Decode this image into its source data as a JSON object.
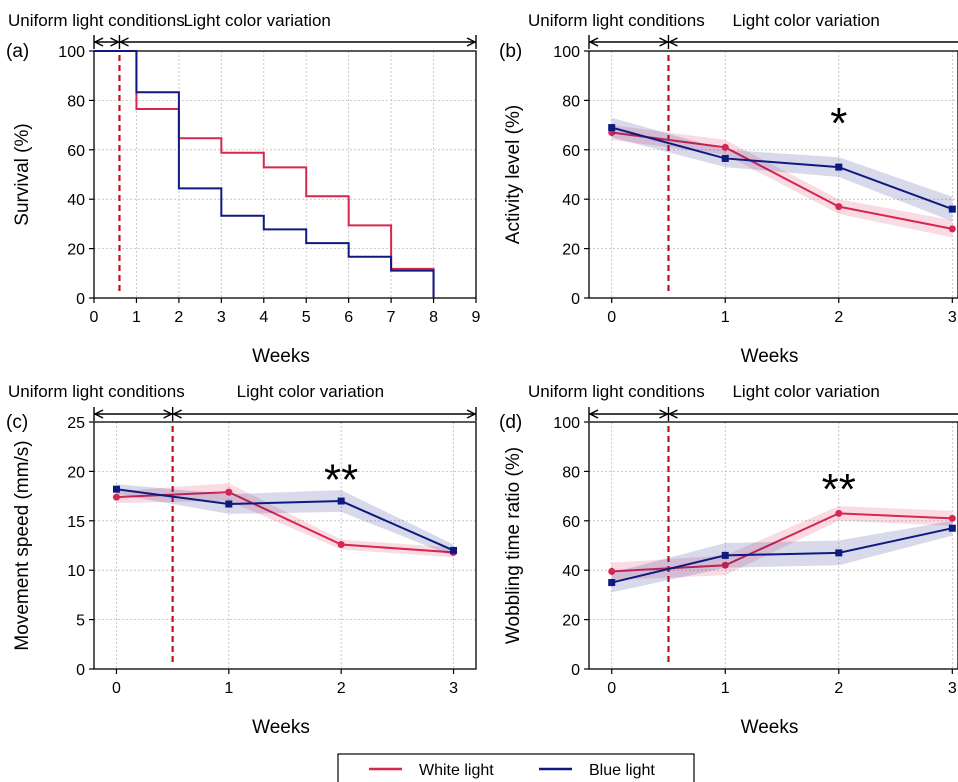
{
  "colors": {
    "white_light": "#d7264f",
    "blue_light": "#0d1a80",
    "phase_line": "#c0121e"
  },
  "legend": {
    "items": [
      "White light",
      "Blue light"
    ]
  },
  "chart_data": [
    {
      "panel": "(a)",
      "type": "line",
      "step": true,
      "xlabel": "Weeks",
      "ylabel": "Survival (%)",
      "xlim": [
        0,
        9
      ],
      "ylim": [
        0,
        100
      ],
      "xticks": [
        "0",
        "1",
        "2",
        "3",
        "4",
        "5",
        "6",
        "7",
        "8",
        "9"
      ],
      "yticks": [
        "0",
        "20",
        "40",
        "60",
        "80",
        "100"
      ],
      "phases": [
        "Uniform light conditions",
        "Light color variation"
      ],
      "phase_boundary": 0.6,
      "significance": "",
      "series": [
        {
          "name": "White light",
          "x": [
            0,
            1,
            2,
            3,
            4,
            5,
            6,
            7,
            8
          ],
          "y": [
            100,
            76.5,
            64.7,
            58.8,
            52.9,
            41.2,
            29.4,
            11.8,
            0
          ]
        },
        {
          "name": "Blue light",
          "x": [
            0,
            1,
            2,
            3,
            4,
            5,
            6,
            7,
            8
          ],
          "y": [
            100,
            83.3,
            44.4,
            33.3,
            27.8,
            22.2,
            16.7,
            11.1,
            0
          ]
        }
      ]
    },
    {
      "panel": "(b)",
      "type": "line",
      "xlabel": "Weeks",
      "ylabel": "Activity level (%)",
      "xlim": [
        -0.2,
        3.05
      ],
      "ylim": [
        0,
        100
      ],
      "xticks": [
        "0",
        "1",
        "2",
        "3"
      ],
      "yticks": [
        "0",
        "20",
        "40",
        "60",
        "80",
        "100"
      ],
      "phases": [
        "Uniform light conditions",
        "Light color variation"
      ],
      "phase_boundary": 0.5,
      "significance": "*",
      "significance_at": [
        2,
        72
      ],
      "series": [
        {
          "name": "White light",
          "x": [
            0,
            1,
            2,
            3
          ],
          "y": [
            67,
            61,
            37,
            28
          ],
          "band": [
            3,
            3,
            3,
            3.5
          ]
        },
        {
          "name": "Blue light",
          "x": [
            0,
            1,
            2,
            3
          ],
          "y": [
            69,
            56.5,
            53,
            36
          ],
          "band": [
            4,
            3.5,
            4,
            5
          ]
        }
      ]
    },
    {
      "panel": "(c)",
      "type": "line",
      "xlabel": "Weeks",
      "ylabel": "Movement speed (mm/s)",
      "xlim": [
        -0.2,
        3.2
      ],
      "ylim": [
        0,
        25
      ],
      "xticks": [
        "0",
        "1",
        "2",
        "3"
      ],
      "yticks": [
        "0",
        "5",
        "10",
        "15",
        "20",
        "25"
      ],
      "phases": [
        "Uniform light conditions",
        "Light color variation"
      ],
      "phase_boundary": 0.5,
      "significance": "**",
      "significance_at": [
        2,
        19.5
      ],
      "series": [
        {
          "name": "White light",
          "x": [
            0,
            1,
            2,
            3
          ],
          "y": [
            17.4,
            17.9,
            12.6,
            11.8
          ],
          "band": [
            0.6,
            0.9,
            0.5,
            0.5
          ]
        },
        {
          "name": "Blue light",
          "x": [
            0,
            1,
            2,
            3
          ],
          "y": [
            18.2,
            16.7,
            17.0,
            12.0
          ],
          "band": [
            0.5,
            1.0,
            1.1,
            0.6
          ]
        }
      ]
    },
    {
      "panel": "(d)",
      "type": "line",
      "xlabel": "Weeks",
      "ylabel": "Wobbling time ratio (%)",
      "xlim": [
        -0.2,
        3.05
      ],
      "ylim": [
        0,
        100
      ],
      "xticks": [
        "0",
        "1",
        "2",
        "3"
      ],
      "yticks": [
        "0",
        "20",
        "40",
        "60",
        "80",
        "100"
      ],
      "phases": [
        "Uniform light conditions",
        "Light color variation"
      ],
      "phase_boundary": 0.5,
      "significance": "**",
      "significance_at": [
        2,
        74
      ],
      "series": [
        {
          "name": "White light",
          "x": [
            0,
            1,
            2,
            3
          ],
          "y": [
            39.5,
            42,
            63,
            61
          ],
          "band": [
            3.5,
            4,
            3,
            3
          ]
        },
        {
          "name": "Blue light",
          "x": [
            0,
            1,
            2,
            3
          ],
          "y": [
            35,
            46,
            47,
            57
          ],
          "band": [
            4,
            5,
            5,
            3
          ]
        }
      ]
    }
  ]
}
